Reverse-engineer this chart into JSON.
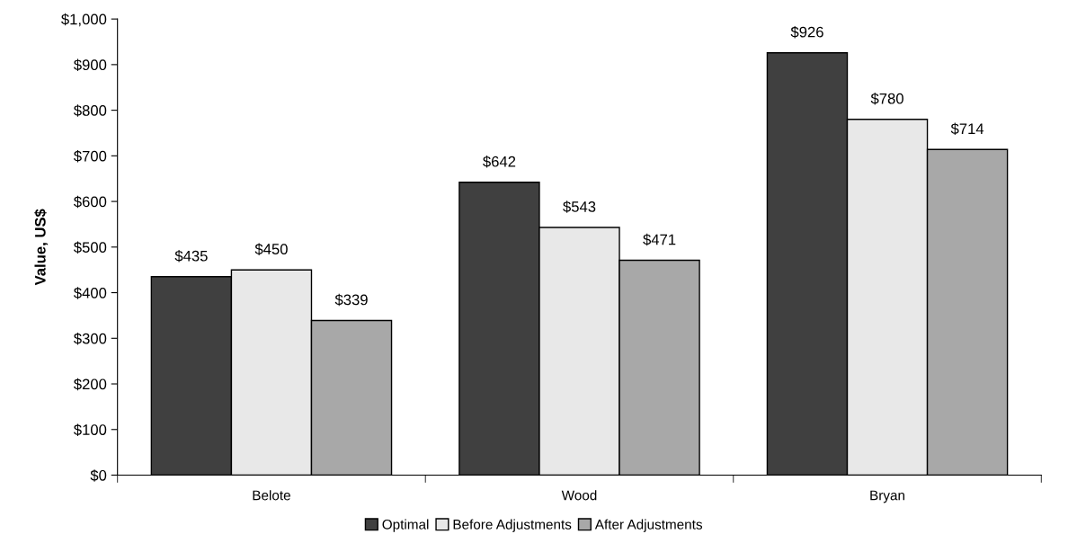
{
  "chart_data": {
    "type": "bar",
    "ylabel": "Value, US$",
    "categories": [
      "Belote",
      "Wood",
      "Bryan"
    ],
    "series": [
      {
        "name": "Optimal",
        "color": "#404040",
        "values": [
          435,
          642,
          926
        ],
        "value_labels": [
          "$435",
          "$642",
          "$926"
        ]
      },
      {
        "name": "Before Adjustments",
        "color": "#e8e8e8",
        "values": [
          450,
          543,
          780
        ],
        "value_labels": [
          "$450",
          "$543",
          "$780"
        ]
      },
      {
        "name": "After Adjustments",
        "color": "#a8a8a8",
        "values": [
          339,
          471,
          714
        ],
        "value_labels": [
          "$339",
          "$471",
          "$714"
        ]
      }
    ],
    "ylim": [
      0,
      1000
    ],
    "yticks": [
      {
        "value": 0,
        "label": "$0"
      },
      {
        "value": 100,
        "label": "$100"
      },
      {
        "value": 200,
        "label": "$200"
      },
      {
        "value": 300,
        "label": "$300"
      },
      {
        "value": 400,
        "label": "$400"
      },
      {
        "value": 500,
        "label": "$500"
      },
      {
        "value": 600,
        "label": "$600"
      },
      {
        "value": 700,
        "label": "$700"
      },
      {
        "value": 800,
        "label": "$800"
      },
      {
        "value": 900,
        "label": "$900"
      },
      {
        "value": 1000,
        "label": "$1,000"
      }
    ],
    "grid": false,
    "legend": "bottom"
  }
}
